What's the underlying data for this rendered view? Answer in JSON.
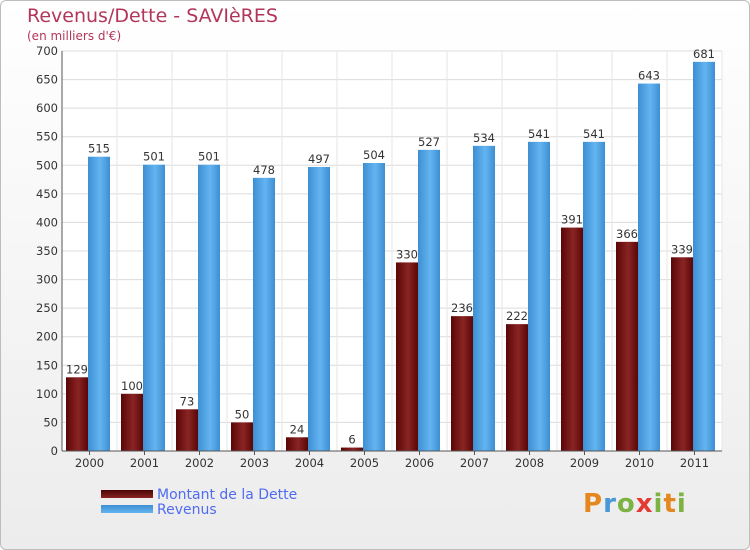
{
  "title": "Revenus/Dette - SAVIèRES",
  "subtitle": "(en milliers d'€)",
  "logo": {
    "text": "Proxiti",
    "letter_colors": [
      "#e5871f",
      "#4a97d8",
      "#7cb342",
      "#e53935",
      "#7cb342",
      "#e5871f",
      "#7cb342"
    ]
  },
  "chart_data": {
    "type": "bar",
    "title": "Revenus/Dette - SAVIèRES",
    "ylabel": "(en milliers d'€)",
    "categories": [
      "2000",
      "2001",
      "2002",
      "2003",
      "2004",
      "2005",
      "2006",
      "2007",
      "2008",
      "2009",
      "2010",
      "2011"
    ],
    "ylim": [
      0,
      700
    ],
    "yticks": [
      0,
      50,
      100,
      150,
      200,
      250,
      300,
      350,
      400,
      450,
      500,
      550,
      600,
      650,
      700
    ],
    "grid": true,
    "legend_position": "bottom-left",
    "series": [
      {
        "name": "Montant de la Dette",
        "color": "#7a1313",
        "values": [
          129,
          100,
          73,
          50,
          24,
          6,
          330,
          236,
          222,
          391,
          366,
          339
        ]
      },
      {
        "name": "Revenus",
        "color": "#4aa3e6",
        "values": [
          515,
          501,
          501,
          478,
          497,
          504,
          527,
          534,
          541,
          541,
          643,
          681
        ]
      }
    ]
  }
}
